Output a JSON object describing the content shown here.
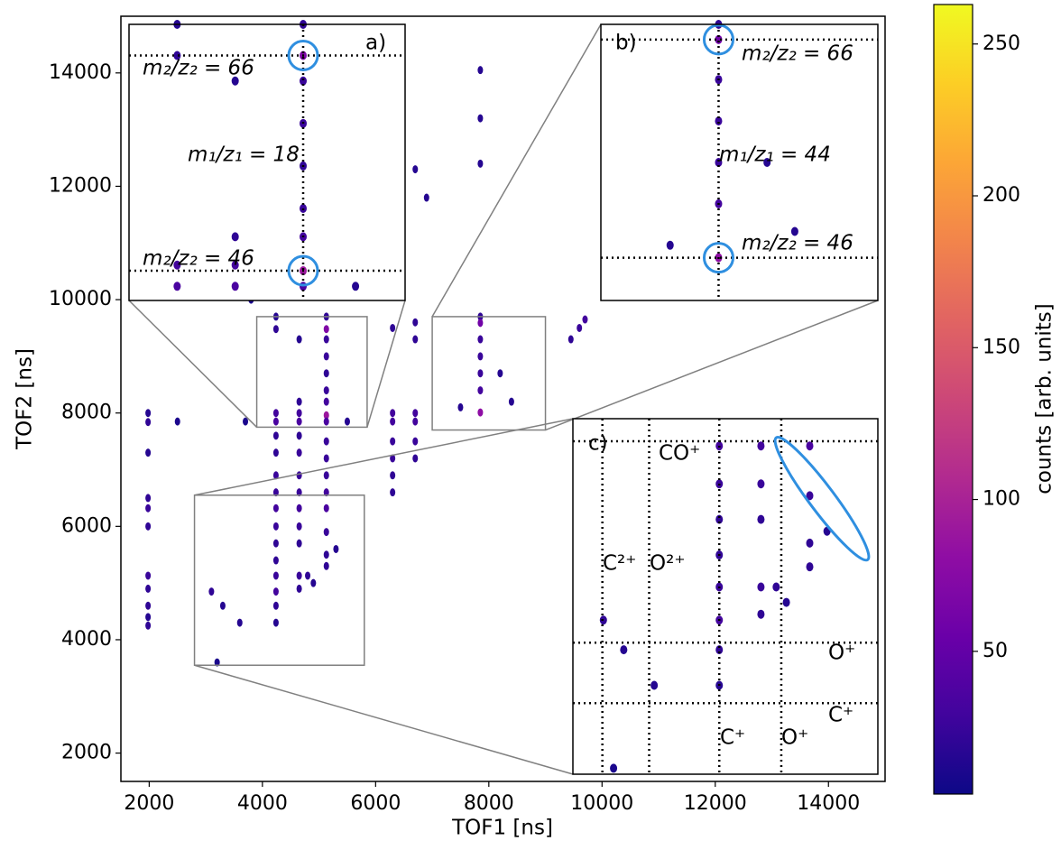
{
  "chart_data": {
    "type": "scatter",
    "x_label": "TOF1 [ns]",
    "y_label": "TOF2 [ns]",
    "xlim": [
      1500,
      15000
    ],
    "ylim": [
      1500,
      15000
    ],
    "xticks": [
      2000,
      4000,
      6000,
      8000,
      10000,
      12000,
      14000
    ],
    "yticks": [
      2000,
      4000,
      6000,
      8000,
      10000,
      12000,
      14000
    ],
    "x": [
      1980,
      1980,
      1980,
      1980,
      1980,
      1980,
      1980,
      1980,
      1980,
      1980,
      1980,
      4240,
      4240,
      4240,
      4240,
      4240,
      4240,
      4240,
      4240,
      4240,
      4240,
      4240,
      4240,
      4240,
      4240,
      4240,
      4240,
      4650,
      4650,
      4650,
      4650,
      4650,
      4650,
      4650,
      4650,
      4650,
      4650,
      4650,
      4650,
      4650,
      5130,
      5130,
      5130,
      5130,
      5130,
      5130,
      5130,
      5130,
      5130,
      5130,
      5130,
      5130,
      5130,
      5130,
      5130,
      5130,
      5130,
      6300,
      6300,
      6300,
      6300,
      6300,
      6300,
      6300,
      6700,
      6700,
      6700,
      6700,
      6700,
      6700,
      7850,
      7850,
      7850,
      7850,
      7850,
      7850,
      7850,
      7850,
      7850,
      7850,
      8200,
      8400,
      7500,
      9600,
      9700,
      9450,
      6700,
      6900,
      5500,
      3800,
      3100,
      3300,
      3600,
      3200,
      4800,
      5500,
      3700,
      2500,
      5300,
      4900
    ],
    "values": [
      8000,
      7840,
      7300,
      6500,
      6320,
      6000,
      5130,
      4900,
      4600,
      4400,
      4250,
      9700,
      9480,
      8000,
      7850,
      7600,
      7300,
      6900,
      6600,
      6320,
      6000,
      5700,
      5400,
      5130,
      4850,
      4600,
      4300,
      9300,
      8200,
      8000,
      7850,
      7600,
      7300,
      6900,
      6600,
      6320,
      6000,
      5700,
      5130,
      4900,
      9700,
      9480,
      9300,
      9000,
      8700,
      8400,
      8200,
      7960,
      7850,
      7500,
      7200,
      6900,
      6600,
      6320,
      5900,
      5500,
      5300,
      9500,
      8000,
      7850,
      7500,
      7200,
      6900,
      6600,
      9600,
      9300,
      8000,
      7850,
      7500,
      7200,
      14050,
      13200,
      12400,
      9700,
      9590,
      9300,
      9000,
      8700,
      8400,
      8010,
      8700,
      8200,
      8100,
      9500,
      9650,
      9300,
      12300,
      11800,
      14500,
      10000,
      4850,
      4600,
      4300,
      3600,
      5130,
      7850,
      7850,
      7850,
      5600,
      5000
    ],
    "counts": [
      15,
      20,
      15,
      20,
      25,
      20,
      25,
      20,
      20,
      15,
      20,
      15,
      20,
      30,
      35,
      20,
      20,
      25,
      25,
      30,
      25,
      20,
      20,
      25,
      30,
      20,
      15,
      15,
      20,
      30,
      35,
      20,
      25,
      25,
      25,
      30,
      25,
      20,
      25,
      20,
      20,
      70,
      25,
      25,
      20,
      25,
      30,
      90,
      35,
      25,
      25,
      25,
      30,
      35,
      25,
      20,
      20,
      20,
      30,
      30,
      25,
      25,
      20,
      20,
      20,
      20,
      30,
      30,
      25,
      20,
      15,
      15,
      15,
      20,
      60,
      25,
      25,
      25,
      30,
      80,
      15,
      15,
      15,
      25,
      30,
      20,
      15,
      15,
      15,
      10,
      20,
      15,
      15,
      10,
      20,
      15,
      10,
      10,
      15,
      15
    ],
    "colorbar": {
      "label": "counts [arb. units]",
      "lim": [
        3,
        263
      ],
      "ticks": [
        50,
        100,
        150,
        200,
        250
      ],
      "colormap": "plasma"
    },
    "insets": [
      {
        "label": "a)",
        "xlim": [
          3900,
          5850
        ],
        "ylim": [
          7750,
          9700
        ],
        "vlines": [
          5130
        ],
        "hlines": [
          9480,
          7960
        ],
        "circles": [
          [
            5130,
            9480
          ],
          [
            5130,
            7960
          ]
        ],
        "texts": [
          "m₂/z₂ = 66",
          "m₁/z₁ = 18",
          "m₂/z₂ = 46"
        ]
      },
      {
        "label": "b)",
        "xlim": [
          7000,
          9000
        ],
        "ylim": [
          7700,
          9700
        ],
        "vlines": [
          7850
        ],
        "hlines": [
          9590,
          8010
        ],
        "circles": [
          [
            7850,
            9590
          ],
          [
            7850,
            8010
          ]
        ],
        "texts": [
          "m₂/z₂ = 66",
          "m₁/z₁ = 44",
          "m₂/z₂ = 46"
        ]
      },
      {
        "label": "c)",
        "xlim": [
          2800,
          5800
        ],
        "ylim": [
          3550,
          6550
        ],
        "vlines": [
          3090,
          3550,
          4240,
          4850
        ],
        "hlines": [
          6360,
          4660,
          4150
        ],
        "ellipse": [
          [
            4800,
            6390
          ],
          [
            5700,
            5360
          ]
        ],
        "texts": [
          "CO⁺",
          "C²⁺",
          "O²⁺",
          "O⁺",
          "C⁺",
          "C⁺",
          "O⁺"
        ]
      }
    ]
  }
}
